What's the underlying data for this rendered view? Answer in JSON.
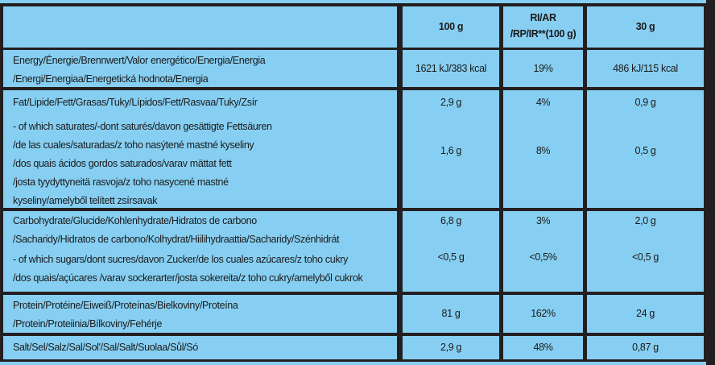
{
  "colors": {
    "cell_background": "#87cff2",
    "border": "#231f20"
  },
  "table": {
    "headers": [
      "",
      "100 g",
      "RI/AR /RP/IR**(100 g)",
      "30 g"
    ],
    "header_ri_lines": [
      "RI/AR",
      "/RP/IR**(100 g)"
    ],
    "rows": [
      {
        "label_lines": [
          "Energy/Énergie/Brennwert/Valor energético/Energia/Energia",
          "/Energi/Energiaa/Energetická hodnota/Energia"
        ],
        "per100": "1621 kJ/383 kcal",
        "ri": "19%",
        "per30": "486 kJ/115 kcal"
      },
      {
        "label_lines": [
          "Fat/Lipide/Fett/Grasas/Tuky/Lípidos/Fett/Rasvaa/Tuky/Zsír"
        ],
        "per100": "2,9 g",
        "ri": "4%",
        "per30": "0,9 g"
      },
      {
        "label_lines": [
          "- of which saturates/-dont saturés/davon gesättigte Fettsäuren",
          "/de las cuales/saturadas/z toho nasýtené mastné kyseliny",
          "/dos quais ácidos gordos saturados/varav mättat fett",
          "/josta tyydyttyneitä rasvoja/z toho nasycené mastné",
          "kyseliny/amelyből telített zsírsavak"
        ],
        "per100": "1,6 g",
        "ri": "8%",
        "per30": "0,5 g"
      },
      {
        "label_lines": [
          "Carbohydrate/Glucide/Kohlenhydrate/Hidratos de carbono",
          "/Sacharidy/Hidratos de carbono/Kolhydrat/Hiilihydraattia/Sacharidy/Szénhidrát"
        ],
        "per100": "6,8 g",
        "ri": "3%",
        "per30": "2,0 g"
      },
      {
        "label_lines": [
          "- of which sugars/dont sucres/davon Zucker/de los cuales azúcares/z toho cukry",
          "/dos quais/açúcares /varav sockerarter/josta sokereita/z toho cukry/amelyből cukrok"
        ],
        "per100": "<0,5 g",
        "ri": "<0,5%",
        "per30": "<0,5 g"
      },
      {
        "label_lines": [
          "Protein/Protéine/Eiweiß/Proteínas/Bielkoviny/Proteína",
          "/Protein/Proteiinia/Bílkoviny/Fehérje"
        ],
        "per100": "81 g",
        "ri": "162%",
        "per30": "24 g"
      },
      {
        "label_lines": [
          "Salt/Sel/Salz/Sal/Sol'/Sal/Salt/Suolaa/Sůl/Só"
        ],
        "per100": "2,9 g",
        "ri": "48%",
        "per30": "0,87 g"
      }
    ]
  }
}
